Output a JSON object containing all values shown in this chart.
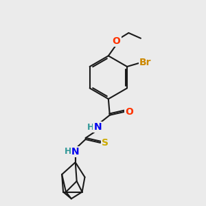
{
  "bg_color": "#ebebeb",
  "bond_color": "#1a1a1a",
  "atom_colors": {
    "O": "#ff3300",
    "Br": "#cc8800",
    "N": "#0000ee",
    "S": "#ccaa00",
    "H": "#339999",
    "C": "#1a1a1a"
  },
  "figsize": [
    3.0,
    3.0
  ],
  "dpi": 100,
  "bond_lw": 1.5,
  "font_size": 9.5
}
